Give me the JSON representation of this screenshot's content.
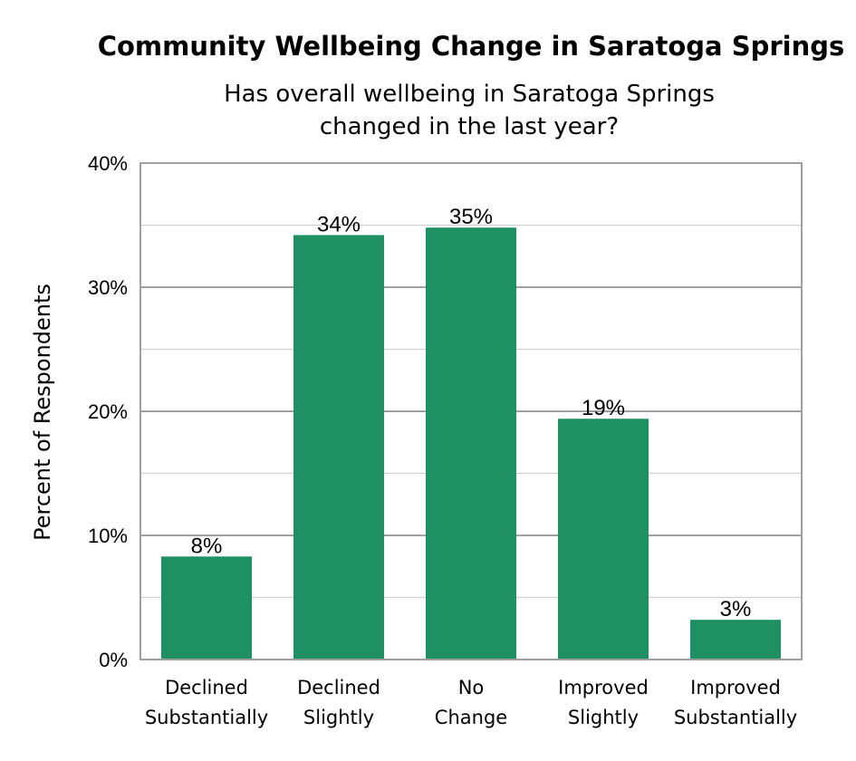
{
  "chart_data": {
    "type": "bar",
    "title": "Community Wellbeing Change in Saratoga Springs",
    "subtitle": [
      "Has overall wellbeing in Saratoga Springs",
      "changed in the last year?"
    ],
    "xlabel": "",
    "ylabel": "Percent of Respondents",
    "categories": [
      [
        "Declined",
        "Substantially"
      ],
      [
        "Declined",
        "Slightly"
      ],
      [
        "No",
        "Change"
      ],
      [
        "Improved",
        "Slightly"
      ],
      [
        "Improved",
        "Substantially"
      ]
    ],
    "values": [
      8.3,
      34.2,
      34.8,
      19.4,
      3.2
    ],
    "data_labels": [
      "8%",
      "34%",
      "35%",
      "19%",
      "3%"
    ],
    "ylim": [
      0,
      40
    ],
    "yticks": [
      0,
      10,
      20,
      30,
      40
    ],
    "ytick_labels": [
      "0%",
      "10%",
      "20%",
      "30%",
      "40%"
    ],
    "grid": true,
    "legend": "none",
    "colors": {
      "bar": "#1f9064",
      "grid_major": "#a0a0a0",
      "grid_minor": "#d0d0d0",
      "frame": "#a0a0a0"
    }
  }
}
